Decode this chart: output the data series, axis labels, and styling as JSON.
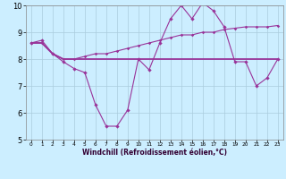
{
  "title": "",
  "xlabel": "Windchill (Refroidissement éolien,°C)",
  "ylabel": "",
  "bg_color": "#cceeff",
  "grid_color": "#aaccdd",
  "line_color": "#993399",
  "xlim": [
    -0.5,
    23.5
  ],
  "ylim": [
    5,
    10
  ],
  "yticks": [
    5,
    6,
    7,
    8,
    9,
    10
  ],
  "xticks": [
    0,
    1,
    2,
    3,
    4,
    5,
    6,
    7,
    8,
    9,
    10,
    11,
    12,
    13,
    14,
    15,
    16,
    17,
    18,
    19,
    20,
    21,
    22,
    23
  ],
  "line1_x": [
    0,
    1,
    2,
    3,
    4,
    5,
    6,
    7,
    8,
    9,
    10,
    11,
    12,
    13,
    14,
    15,
    16,
    17,
    18,
    19,
    20,
    21,
    22,
    23
  ],
  "line1_y": [
    8.6,
    8.7,
    8.2,
    7.9,
    7.65,
    7.5,
    6.3,
    5.5,
    5.5,
    6.1,
    8.0,
    7.6,
    8.6,
    9.5,
    10.0,
    9.5,
    10.1,
    9.8,
    9.2,
    7.9,
    7.9,
    7.0,
    7.3,
    8.0
  ],
  "line2_x": [
    0,
    1,
    2,
    3,
    4,
    5,
    6,
    7,
    8,
    9,
    10,
    11,
    12,
    13,
    14,
    15,
    16,
    17,
    18,
    19,
    20,
    21,
    22,
    23
  ],
  "line2_y": [
    8.6,
    8.6,
    8.2,
    8.0,
    8.0,
    8.0,
    8.0,
    8.0,
    8.0,
    8.0,
    8.0,
    8.0,
    8.0,
    8.0,
    8.0,
    8.0,
    8.0,
    8.0,
    8.0,
    8.0,
    8.0,
    8.0,
    8.0,
    8.0
  ],
  "line3_x": [
    0,
    1,
    2,
    3,
    4,
    5,
    6,
    7,
    8,
    9,
    10,
    11,
    12,
    13,
    14,
    15,
    16,
    17,
    18,
    19,
    20,
    21,
    22,
    23
  ],
  "line3_y": [
    8.6,
    8.6,
    8.2,
    8.0,
    8.0,
    8.1,
    8.2,
    8.2,
    8.3,
    8.4,
    8.5,
    8.6,
    8.7,
    8.8,
    8.9,
    8.9,
    9.0,
    9.0,
    9.1,
    9.15,
    9.2,
    9.2,
    9.2,
    9.25
  ],
  "xlabel_fontsize": 5.5,
  "ytick_fontsize": 6.0,
  "xtick_fontsize": 4.2
}
